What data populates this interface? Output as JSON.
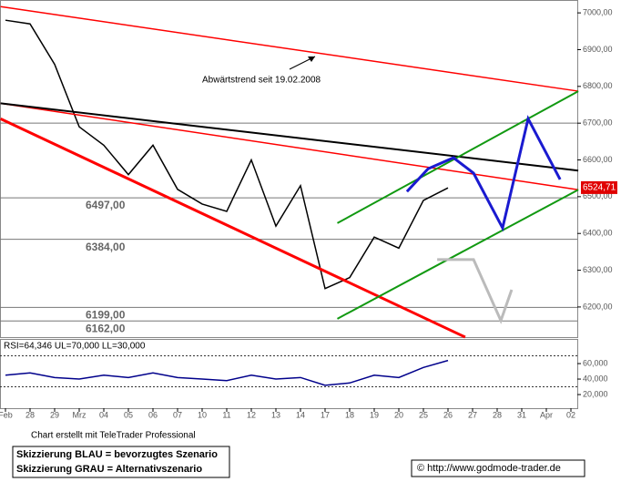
{
  "chart_data": {
    "type": "line",
    "annotation": "Abwärtstrend seit 19.02.2008",
    "categories": [
      "Feb",
      "28",
      "29",
      "Mrz",
      "04",
      "05",
      "06",
      "07",
      "10",
      "11",
      "12",
      "13",
      "14",
      "17",
      "18",
      "19",
      "20",
      "25",
      "26",
      "27",
      "28",
      "31",
      "Apr",
      "02"
    ],
    "series": [
      {
        "color": "#000000",
        "values": [
          6980,
          6970,
          6860,
          6690,
          6640,
          6560,
          6640,
          6520,
          6480,
          6460,
          6600,
          6420,
          6530,
          6250,
          6280,
          6390,
          6360,
          6490,
          6524,
          null,
          null,
          null,
          null,
          null
        ]
      }
    ],
    "ylim": [
      6118,
      7035
    ],
    "yticks": [
      {
        "value": 6200,
        "label": "6200,00"
      },
      {
        "value": 6300,
        "label": "6300,00"
      },
      {
        "value": 6400,
        "label": "6400,00"
      },
      {
        "value": 6500,
        "label": "6500,00"
      },
      {
        "value": 6600,
        "label": "6600,00"
      },
      {
        "value": 6700,
        "label": "6700,00"
      },
      {
        "value": 6800,
        "label": "6800,00"
      },
      {
        "value": 6900,
        "label": "6900,00"
      },
      {
        "value": 7000,
        "label": "7000,00"
      }
    ],
    "levels": [
      6700,
      6497,
      6384,
      6199,
      6162
    ],
    "level_labels": [
      null,
      "6497,00",
      "6384,00",
      "6199,00",
      "6162,00"
    ],
    "trendlines": [
      {
        "color": "#ff0000",
        "width": 1.5,
        "points": [
          [
            -0.2,
            7017
          ],
          [
            23.3,
            6787
          ]
        ]
      },
      {
        "color": "#ff0000",
        "width": 1.5,
        "points": [
          [
            -0.2,
            6754
          ],
          [
            23.3,
            6519
          ]
        ]
      },
      {
        "color": "#ff0000",
        "width": 3,
        "points": [
          [
            -0.2,
            6712
          ],
          [
            18.7,
            6118
          ]
        ]
      },
      {
        "color": "#000000",
        "width": 2,
        "points": [
          [
            -0.2,
            6754
          ],
          [
            23.3,
            6571
          ]
        ]
      },
      {
        "color": "#119911",
        "width": 2,
        "points": [
          [
            13.5,
            6428
          ],
          [
            23.3,
            6787
          ]
        ]
      },
      {
        "color": "#119911",
        "width": 2,
        "points": [
          [
            13.5,
            6168
          ],
          [
            23.3,
            6519
          ]
        ]
      },
      {
        "color": "#1a1ad0",
        "width": 3,
        "points": [
          [
            16.33,
            6514
          ],
          [
            17.19,
            6576
          ],
          [
            18.22,
            6606
          ],
          [
            19.04,
            6564
          ],
          [
            20.22,
            6415
          ],
          [
            21.26,
            6712
          ],
          [
            22.56,
            6547
          ]
        ]
      },
      {
        "color": "#bbbbbb",
        "width": 3,
        "points": [
          [
            17.56,
            6329
          ],
          [
            19.04,
            6329
          ],
          [
            20.15,
            6163
          ],
          [
            20.59,
            6247
          ]
        ]
      }
    ],
    "current_value": 6524.71,
    "current_label": "6524,71",
    "rsi": {
      "title": "RSI=64,346 UL=70,000 LL=30,000",
      "values": [
        45,
        48,
        42,
        40,
        45,
        42,
        48,
        42,
        40,
        38,
        45,
        40,
        42,
        32,
        35,
        45,
        42,
        55,
        64,
        null,
        null,
        null,
        null,
        null
      ],
      "ylim": [
        2.4,
        91.8
      ],
      "yticks": [
        {
          "value": 20,
          "label": "20,000"
        },
        {
          "value": 40,
          "label": "40,000"
        },
        {
          "value": 60,
          "label": "60,000"
        }
      ],
      "ul": 70,
      "ll": 30
    },
    "credit": "Chart erstellt mit TeleTrader Professional",
    "notes": [
      "Skizzierung BLAU = bevorzugtes Szenario",
      "Skizzierung GRAU = Alternativszenario"
    ],
    "copyright": "© http://www.godmode-trader.de"
  }
}
